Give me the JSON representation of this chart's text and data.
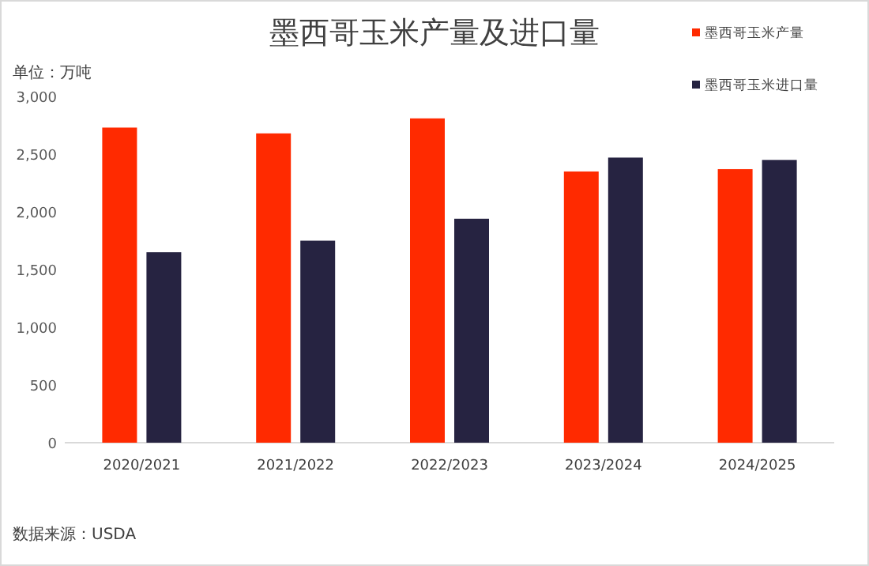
{
  "chart_data": {
    "type": "bar",
    "title": "墨西哥玉米产量及进口量",
    "ylabel": "单位：万吨",
    "categories": [
      "2020/2021",
      "2021/2022",
      "2022/2023",
      "2023/2024",
      "2024/2025"
    ],
    "series": [
      {
        "name": "墨西哥玉米产量",
        "color": "#ff2a00",
        "values": [
          2730,
          2680,
          2810,
          2350,
          2370
        ]
      },
      {
        "name": "墨西哥玉米进口量",
        "color": "#262341",
        "values": [
          1650,
          1750,
          1940,
          2470,
          2450
        ]
      }
    ],
    "ylim": [
      0,
      3000
    ],
    "yticks": [
      {
        "value": 0,
        "label": "0"
      },
      {
        "value": 500,
        "label": "500"
      },
      {
        "value": 1000,
        "label": "1,000"
      },
      {
        "value": 1500,
        "label": "1,500"
      },
      {
        "value": 2000,
        "label": "2,000"
      },
      {
        "value": 2500,
        "label": "2,500"
      },
      {
        "value": 3000,
        "label": "3,000"
      }
    ],
    "grid": false,
    "legend": "top right",
    "annotations": [
      "数据来源：USDA"
    ]
  }
}
